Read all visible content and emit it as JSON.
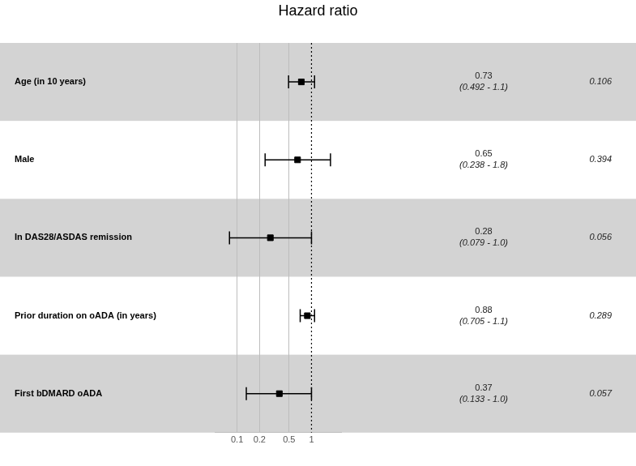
{
  "chart_data": {
    "type": "forest",
    "title": "Hazard ratio",
    "categories": [
      "Age (in 10 years)",
      "Male",
      "In DAS28/ASDAS remission",
      "Prior duration on oADA (in years)",
      "First bDMARD oADA"
    ],
    "values": [
      0.73,
      0.65,
      0.28,
      0.88,
      0.37
    ],
    "ci_lower": [
      0.492,
      0.238,
      0.079,
      0.705,
      0.133
    ],
    "ci_upper": [
      1.1,
      1.8,
      1.0,
      1.1,
      1.0
    ],
    "ci_labels": [
      "(0.492 - 1.1)",
      "(0.238 - 1.8)",
      "(0.079 - 1.0)",
      "(0.705 - 1.1)",
      "(0.133 - 1.0)"
    ],
    "p_values": [
      0.106,
      0.394,
      0.056,
      0.289,
      0.057
    ],
    "reference_line": 1,
    "xlim": [
      0.05,
      2.5
    ],
    "xticks": [
      0.1,
      0.2,
      0.5,
      1
    ],
    "log": "x",
    "grid": true,
    "color": "#000000",
    "marker": "square"
  }
}
